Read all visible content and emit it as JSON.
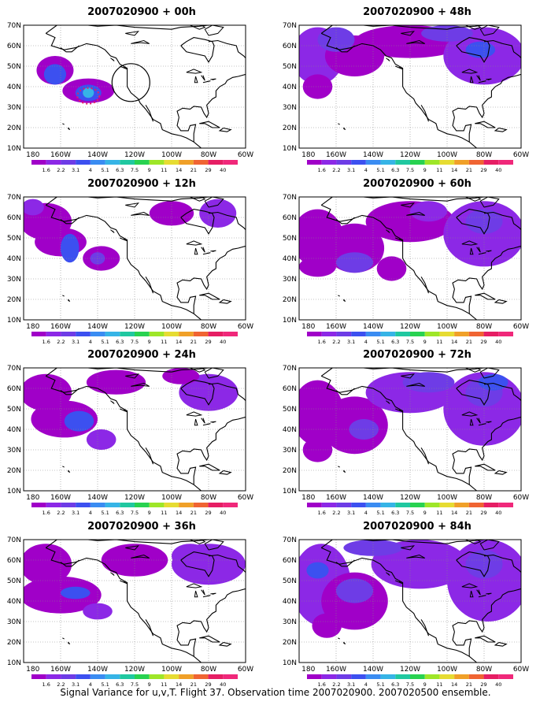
{
  "chart_data": {
    "type": "contour-map",
    "legend_levels": [
      "1.6",
      "2.2",
      "3.1",
      "4",
      "5.1",
      "6.3",
      "7.5",
      "9",
      "11",
      "14",
      "21",
      "29",
      "40"
    ],
    "legend_colors": [
      "#a000c8",
      "#8c28e6",
      "#6e3ce6",
      "#3c50f0",
      "#3a8cf2",
      "#36b4e6",
      "#20c8a0",
      "#28d250",
      "#9ee628",
      "#e6dc32",
      "#f0a028",
      "#f06432",
      "#e61e64",
      "#f0287a"
    ],
    "lon_ticks": [
      "180",
      "160W",
      "140W",
      "120W",
      "100W",
      "80W",
      "60W"
    ],
    "lat_ticks": [
      "10N",
      "20N",
      "30N",
      "40N",
      "50N",
      "60N",
      "70N"
    ],
    "panels": [
      {
        "title": "2007020900 + 00h",
        "lead_hours": 0
      },
      {
        "title": "2007020900 + 48h",
        "lead_hours": 48
      },
      {
        "title": "2007020900 + 12h",
        "lead_hours": 12
      },
      {
        "title": "2007020900 + 60h",
        "lead_hours": 60
      },
      {
        "title": "2007020900 + 24h",
        "lead_hours": 24
      },
      {
        "title": "2007020900 + 72h",
        "lead_hours": 72
      },
      {
        "title": "2007020900 + 36h",
        "lead_hours": 36
      },
      {
        "title": "2007020900 + 84h",
        "lead_hours": 84
      }
    ]
  },
  "footer": "Signal Variance for u,v,T. Flight 37. Observation time 2007020900. 2007020500 ensemble."
}
